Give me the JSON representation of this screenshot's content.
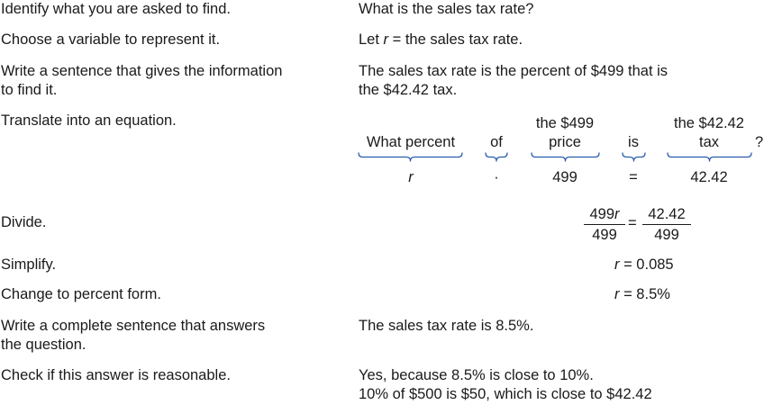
{
  "steps": [
    {
      "instruction": "Identify what you are asked to find.",
      "result": "What is the sales tax rate?"
    },
    {
      "instruction": "Choose a variable to represent it.",
      "result_prefix": "Let ",
      "result_var": "r",
      "result_suffix": " = the sales tax rate."
    },
    {
      "instruction_line1": "Write a sentence that gives the information",
      "instruction_line2": "to find it.",
      "result_line1": "The sales tax rate is the percent of $499 that is",
      "result_line2": "the $42.42 tax."
    },
    {
      "instruction": "Translate into an equation."
    },
    {
      "instruction": "Divide."
    },
    {
      "instruction": "Simplify."
    },
    {
      "instruction": "Change to percent form."
    },
    {
      "instruction_line1": "Write a complete sentence that answers",
      "instruction_line2": "the question.",
      "result": "The sales tax rate is 8.5%."
    },
    {
      "instruction": "Check if this answer is reasonable.",
      "result_line1": "Yes, because 8.5% is close to 10%.",
      "result_line2": "10% of $500 is $50, which is close to $42.42"
    }
  ],
  "translation": {
    "phrases": {
      "what_percent": "What percent",
      "of": "of",
      "price_line1": "the $499",
      "price_line2": "price",
      "is": "is",
      "tax_line1": "the $42.42",
      "tax_line2": "tax",
      "question_mark": "?"
    },
    "symbols": {
      "var": "r",
      "times": "·",
      "price": "499",
      "equals": "=",
      "tax": "42.42"
    }
  },
  "divide": {
    "num_left_number": "499",
    "num_left_var": "r",
    "den_left": "499",
    "equals": "=",
    "num_right": "42.42",
    "den_right": "499"
  },
  "simplify": {
    "var": "r",
    "rest": " = 0.085"
  },
  "percent": {
    "var": "r",
    "rest": " = 8.5%"
  },
  "colors": {
    "brace": "#2a5db0",
    "text": "#1a1a1a"
  }
}
